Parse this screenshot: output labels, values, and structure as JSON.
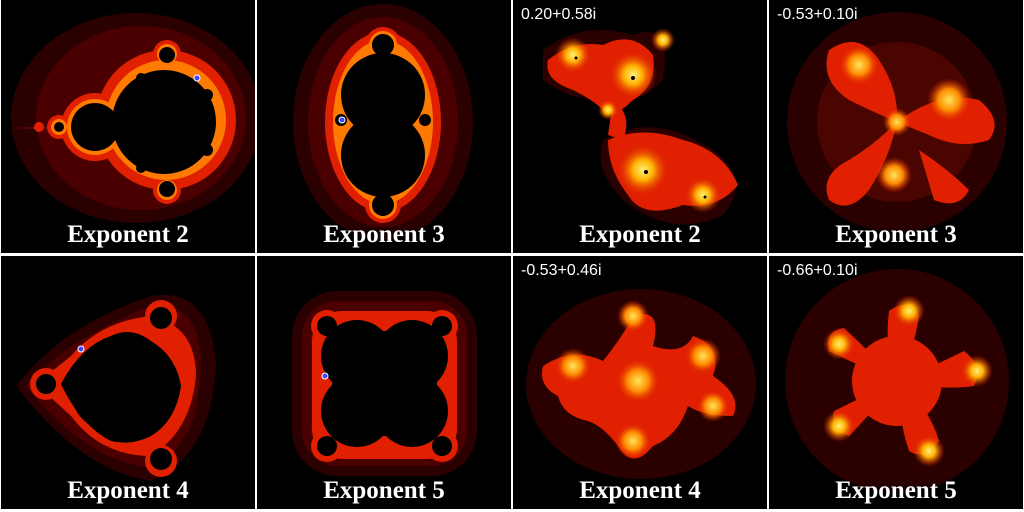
{
  "panels": [
    {
      "caption": "Exponent 2",
      "kind": "mandelbrot",
      "exponent": 2,
      "param": ""
    },
    {
      "caption": "Exponent 3",
      "kind": "mandelbrot",
      "exponent": 3,
      "param": ""
    },
    {
      "caption": "Exponent 2",
      "kind": "julia",
      "exponent": 2,
      "param": "0.20+0.58i"
    },
    {
      "caption": "Exponent 3",
      "kind": "julia",
      "exponent": 3,
      "param": "-0.53+0.10i"
    },
    {
      "caption": "Exponent 4",
      "kind": "mandelbrot",
      "exponent": 4,
      "param": ""
    },
    {
      "caption": "Exponent 5",
      "kind": "mandelbrot",
      "exponent": 5,
      "param": ""
    },
    {
      "caption": "Exponent 4",
      "kind": "julia",
      "exponent": 4,
      "param": "-0.53+0.46i"
    },
    {
      "caption": "Exponent 5",
      "kind": "julia",
      "exponent": 5,
      "param": "-0.66+0.10i"
    }
  ],
  "colors": {
    "background": "#000000",
    "halo_outer": "#3a0000",
    "halo_mid": "#7a0a00",
    "fractal_red": "#e02000",
    "fractal_orange": "#ff6a00",
    "fractal_yellow": "#ffd21a",
    "marker": "#3a48ff"
  }
}
